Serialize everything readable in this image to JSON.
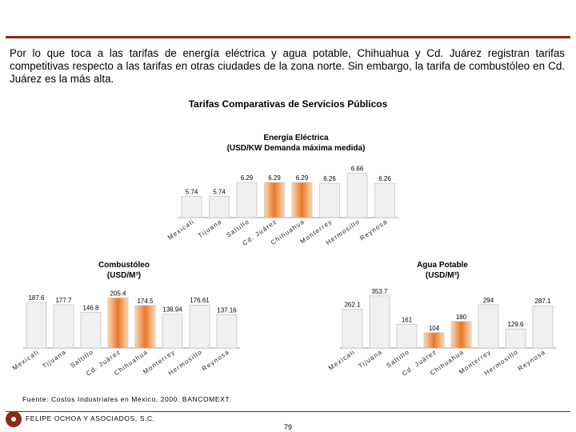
{
  "intro_text": "Por lo que toca a las tarifas de energía eléctrica y agua potable, Chihuahua y Cd. Juárez registran tarifas competitivas respecto a las tarifas en otras ciudades de la zona norte. Sin embargo, la tarifa de combustóleo en Cd. Juárez es la más alta.",
  "main_title": "Tarifas Comparativas de Servicios Públicos",
  "colors": {
    "bar": "#f0f0f0",
    "highlight_light": "#fbd8b0",
    "highlight_dark": "#e8782c",
    "accent": "#8a2a17"
  },
  "chart_data": [
    {
      "type": "bar",
      "title": "Energía Eléctrica",
      "subtitle": "(USD/KW Demanda máxima medida)",
      "categories": [
        "Mexicali",
        "Tijuana",
        "Saltillo",
        "Cd. Juárez",
        "Chihuahua",
        "Monterrey",
        "Hermosillo",
        "Reynosa"
      ],
      "values": [
        5.74,
        5.74,
        6.29,
        6.29,
        6.29,
        6.26,
        6.66,
        6.26
      ],
      "value_labels": [
        "5.74",
        "5.74",
        "6.29",
        "6.29",
        "6.29",
        "6.26",
        "6.66",
        "6.26"
      ],
      "highlight": [
        "Cd. Juárez",
        "Chihuahua"
      ],
      "ylim": [
        4.9,
        6.8
      ]
    },
    {
      "type": "bar",
      "title": "Combustóleo",
      "subtitle": "(USD/M³)",
      "categories": [
        "Mexicali",
        "Tijuana",
        "Saltillo",
        "Cd. Juárez",
        "Chihuahua",
        "Monterrey",
        "Hermosillo",
        "Reynosa"
      ],
      "values": [
        187.6,
        177.7,
        146.8,
        205.4,
        174.5,
        138.94,
        176.61,
        137.16
      ],
      "value_labels": [
        "187.6",
        "177.7",
        "146.8",
        "205.4",
        "174.5",
        "138.94",
        "176.61",
        "137.16"
      ],
      "highlight": [
        "Cd. Juárez",
        "Chihuahua"
      ],
      "ylim": [
        0,
        230
      ]
    },
    {
      "type": "bar",
      "title": "Agua Potable",
      "subtitle": "(USD/M³)",
      "categories": [
        "Mexicali",
        "Tijuana",
        "Saltillo",
        "Cd. Juárez",
        "Chihuahua",
        "Monterrey",
        "Hermosillo",
        "Reynosa"
      ],
      "values": [
        262.1,
        353.7,
        161,
        104,
        180,
        294,
        129.6,
        287.1
      ],
      "value_labels": [
        "262.1",
        "353.7",
        "161",
        "104",
        "180",
        "294",
        "129.6",
        "287.1"
      ],
      "highlight": [
        "Cd. Juárez",
        "Chihuahua"
      ],
      "ylim": [
        0,
        380
      ]
    }
  ],
  "source_text": "Fuente: Costos Industriales en México, 2000. BANCOMEXT.",
  "company_name": "FELIPE OCHOA Y ASOCIADOS, S.C.",
  "page_number": "79"
}
